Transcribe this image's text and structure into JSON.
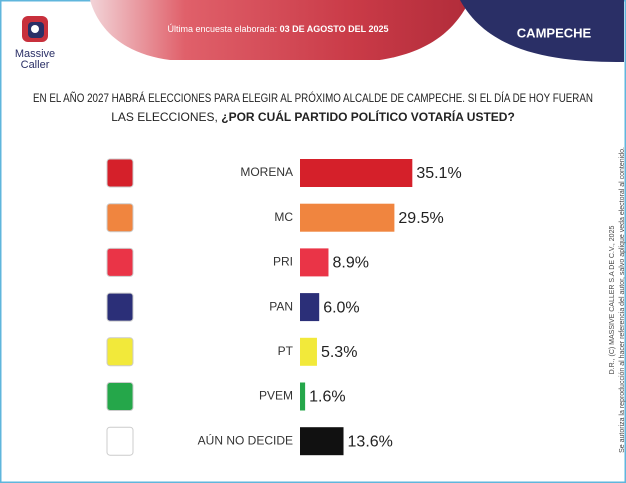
{
  "header": {
    "brand_line1": "Massive",
    "brand_line2": "Caller",
    "survey_label": "Última encuesta elaborada:",
    "survey_date": "03 DE AGOSTO DEL 2025",
    "region": "CAMPECHE"
  },
  "chart_data": {
    "type": "bar",
    "orientation": "horizontal",
    "title": "EN EL AÑO 2027 HABRÁ ELECCIONES PARA ELEGIR AL PRÓXIMO ALCALDE DE CAMPECHE. SI EL DÍA DE HOY FUERAN",
    "title_line2": "LAS ELECCIONES,",
    "title_question": "¿POR CUÁL PARTIDO POLÍTICO VOTARÍA USTED?",
    "categories": [
      "MORENA",
      "MC",
      "PRI",
      "PAN",
      "PT",
      "PVEM",
      "AÚN NO DECIDE"
    ],
    "values": [
      35.1,
      29.5,
      8.9,
      6.0,
      5.3,
      1.6,
      13.6
    ],
    "value_labels": [
      "35.1%",
      "29.5%",
      "8.9%",
      "6.0%",
      "5.3%",
      "1.6%",
      "13.6%"
    ],
    "colors": [
      "#d5202a",
      "#f0853f",
      "#ea3447",
      "#2b2f78",
      "#f2e93a",
      "#25a74a",
      "#111111"
    ]
  },
  "footer": {
    "copyright": "D.R., (C) MASSIVE CALLER S.A DE C.V., 2025",
    "notice": "Se autoriza la reproducción al hacer referencia del autor, salvo aplique veda electoral al contenido."
  }
}
